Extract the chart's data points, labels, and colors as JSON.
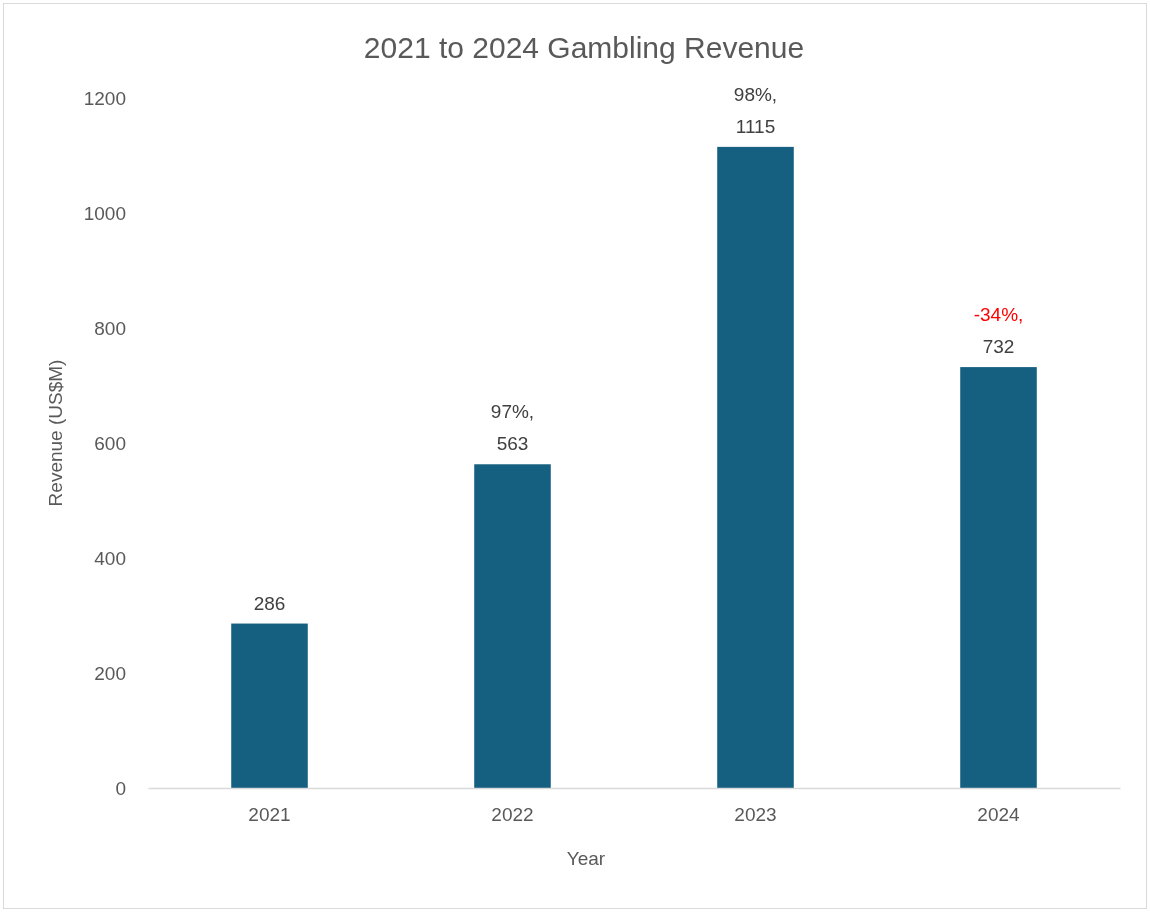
{
  "chart_data": {
    "type": "bar",
    "title": "2021 to 2024 Gambling Revenue",
    "xlabel": "Year",
    "ylabel": "Revenue (US$M)",
    "categories": [
      "2021",
      "2022",
      "2023",
      "2024"
    ],
    "values": [
      286,
      563,
      1115,
      732
    ],
    "color": "#155f80",
    "value_labels": [
      "286",
      "97%,\n563",
      "98%,\n1115",
      "-34%,\n732"
    ],
    "ylim": [
      0,
      1200
    ],
    "yticks": [
      0,
      200,
      400,
      600,
      800,
      1000,
      1200
    ],
    "grid": false
  }
}
